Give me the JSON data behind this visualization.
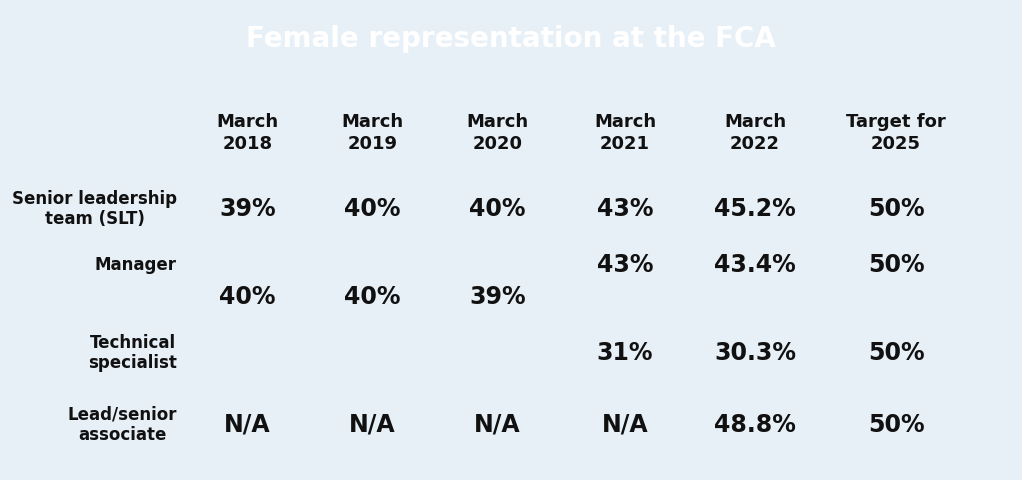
{
  "title": "Female representation at the FCA",
  "title_bg_color": "#6655E8",
  "title_text_color": "#FFFFFF",
  "table_bg_color": "#E8F0F7",
  "footer_bg_color": "#4A7A5A",
  "col_headers": [
    "March\n2018",
    "March\n2019",
    "March\n2020",
    "March\n2021",
    "March\n2022",
    "Target for\n2025"
  ],
  "row_labels": [
    "Senior leadership\nteam (SLT)",
    "Manager",
    "Technical\nspecialist",
    "Lead/senior\nassociate"
  ],
  "manager_top_row": [
    "",
    "",
    "",
    "43%",
    "43.4%",
    "50%"
  ],
  "manager_bottom_row": [
    "40%",
    "40%",
    "39%",
    "",
    "",
    ""
  ],
  "data_rows": [
    [
      "39%",
      "40%",
      "40%",
      "43%",
      "45.2%",
      "50%"
    ],
    [
      "",
      "",
      "",
      "31%",
      "30.3%",
      "50%"
    ],
    [
      "N/A",
      "N/A",
      "N/A",
      "N/A",
      "48.8%",
      "50%"
    ]
  ],
  "title_fontsize": 20,
  "header_fontsize": 13,
  "data_fontsize": 17,
  "row_label_fontsize": 12,
  "fig_width": 10.22,
  "fig_height": 4.81,
  "dpi": 100
}
